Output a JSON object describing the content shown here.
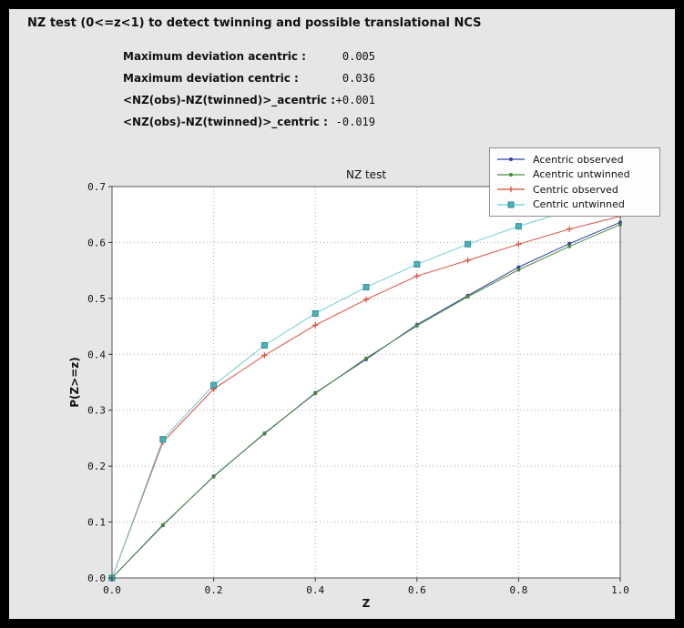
{
  "header": {
    "title": "NZ test (0<=z<1) to detect twinning and possible translational NCS"
  },
  "stats": [
    {
      "label": "Maximum deviation acentric :",
      "value": "0.005"
    },
    {
      "label": "Maximum deviation centric :",
      "value": "0.036"
    },
    {
      "label": "<NZ(obs)-NZ(twinned)>_acentric :",
      "value": "+0.001"
    },
    {
      "label": "<NZ(obs)-NZ(twinned)>_centric :",
      "value": "-0.019"
    }
  ],
  "chart_data": {
    "type": "line",
    "title": "NZ test",
    "xlabel": "Z",
    "ylabel": "P(Z>=z)",
    "xlim": [
      0.0,
      1.0
    ],
    "ylim": [
      0.0,
      0.7
    ],
    "x_ticks": [
      "0.0",
      "0.2",
      "0.4",
      "0.6",
      "0.8",
      "1.0"
    ],
    "y_ticks": [
      "0.0",
      "0.1",
      "0.2",
      "0.3",
      "0.4",
      "0.5",
      "0.6",
      "0.7"
    ],
    "grid": true,
    "legend_position": "top-right",
    "x": [
      0.0,
      0.1,
      0.2,
      0.3,
      0.4,
      0.5,
      0.6,
      0.7,
      0.8,
      0.9,
      1.0
    ],
    "series": [
      {
        "name": "Acentric observed",
        "color": "#3140a6",
        "marker": "dot",
        "values": [
          0.0,
          0.094,
          0.182,
          0.258,
          0.331,
          0.391,
          0.453,
          0.505,
          0.556,
          0.598,
          0.636
        ]
      },
      {
        "name": "Acentric untwinned",
        "color": "#4a8c3e",
        "marker": "dot",
        "values": [
          0.0,
          0.095,
          0.181,
          0.259,
          0.33,
          0.393,
          0.451,
          0.503,
          0.551,
          0.593,
          0.632
        ]
      },
      {
        "name": "Centric observed",
        "color": "#dd4b3e",
        "marker": "plus",
        "values": [
          0.0,
          0.243,
          0.338,
          0.398,
          0.452,
          0.498,
          0.54,
          0.568,
          0.597,
          0.624,
          0.647
        ]
      },
      {
        "name": "Centric untwinned",
        "color": "#6ecfd6",
        "marker": "square",
        "marker_fill": "#49b2b9",
        "marker_edge": "#2f8f96",
        "values": [
          0.0,
          0.248,
          0.345,
          0.416,
          0.473,
          0.52,
          0.561,
          0.597,
          0.629,
          0.657,
          0.683
        ]
      }
    ]
  },
  "colors": {
    "outer_bg": "#000000",
    "panel_bg": "#e6e6e6",
    "plot_bg": "#ffffff",
    "grid": "#a6a6a6"
  }
}
